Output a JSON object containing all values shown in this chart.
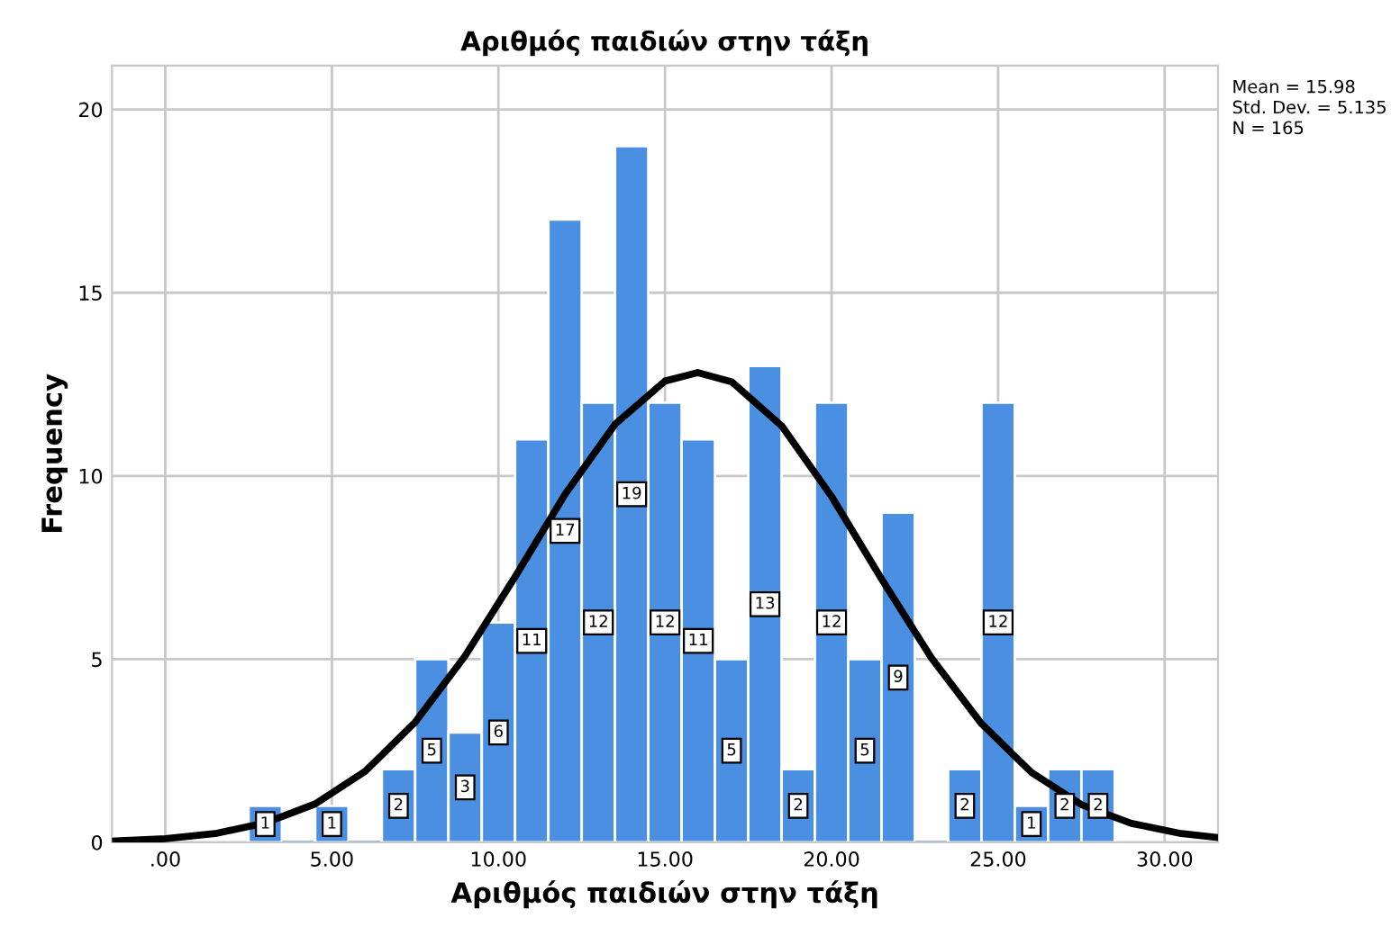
{
  "chart_data": {
    "type": "histogram",
    "title": "Αριθμός παιδιών στην τάξη",
    "xlabel": "Αριθμός παιδιών στην τάξη",
    "ylabel": "Frequency",
    "bins": [
      2.5,
      3.5,
      4.5,
      5.5,
      6.5,
      7.5,
      8.5,
      9.5,
      10.5,
      11.5,
      12.5,
      13.5,
      14.5,
      15.5,
      16.5,
      17.5,
      18.5,
      19.5,
      20.5,
      21.5,
      22.5,
      23.5,
      24.5,
      25.5,
      26.5,
      27.5,
      28.5
    ],
    "series": [
      {
        "color": "#4a8fe2",
        "values": [
          1,
          0,
          1,
          0,
          2,
          5,
          3,
          6,
          11,
          17,
          12,
          19,
          12,
          11,
          5,
          13,
          2,
          12,
          5,
          9,
          0,
          2,
          12,
          1,
          2,
          2
        ],
        "value_labels": [
          "1",
          null,
          "1",
          null,
          "2",
          "5",
          "3",
          "6",
          "11",
          "17",
          "12",
          "19",
          "12",
          "11",
          "5",
          "13",
          "2",
          "12",
          "5",
          "9",
          null,
          "2",
          "12",
          "1",
          "2",
          "2"
        ]
      },
      {
        "type": "line",
        "color": "#000000",
        "x": [
          -1.5,
          0,
          1.5,
          3,
          4.5,
          6,
          7.5,
          9,
          10.5,
          12,
          13.5,
          15,
          15.98,
          17,
          18.5,
          20,
          21.5,
          23,
          24.5,
          26,
          27.5,
          29,
          30.5,
          31.6
        ],
        "values": [
          0.04,
          0.1,
          0.24,
          0.53,
          1.05,
          1.94,
          3.28,
          5.09,
          7.25,
          9.5,
          11.41,
          12.59,
          12.82,
          12.57,
          11.37,
          9.44,
          7.19,
          5.03,
          3.24,
          1.91,
          1.03,
          0.52,
          0.24,
          0.13
        ]
      }
    ],
    "xlim": [
      -1.6,
      31.6
    ],
    "ylim": [
      0,
      21.2
    ],
    "xticks": [
      {
        "value": 0,
        "label": ".00"
      },
      {
        "value": 5,
        "label": "5.00"
      },
      {
        "value": 10,
        "label": "10.00"
      },
      {
        "value": 15,
        "label": "15.00"
      },
      {
        "value": 20,
        "label": "20.00"
      },
      {
        "value": 25,
        "label": "25.00"
      },
      {
        "value": 30,
        "label": "30.00"
      }
    ],
    "yticks": [
      0,
      5,
      10,
      15,
      20
    ],
    "grid": true,
    "annotations": [
      "Mean = 15.98",
      "Std. Dev. = 5.135",
      "N = 165"
    ]
  }
}
